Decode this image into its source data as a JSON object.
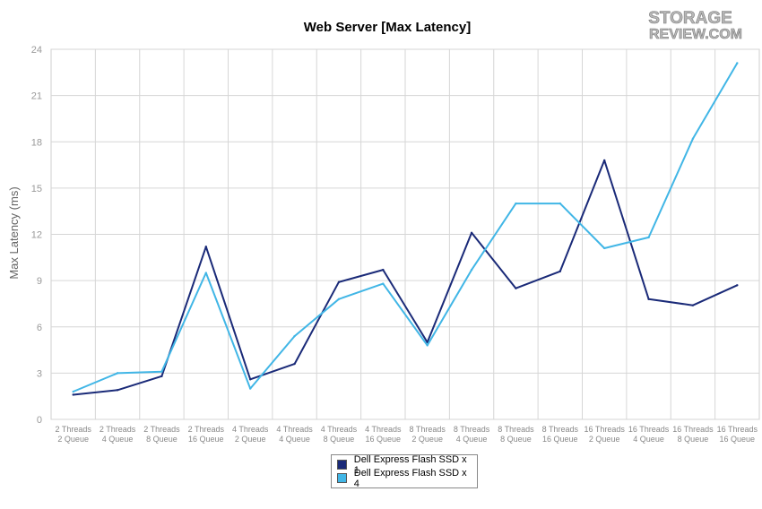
{
  "logo": {
    "line1": "STORAGE",
    "line2": "REVIEW.COM"
  },
  "chart_data": {
    "type": "line",
    "title": "Web Server [Max Latency]",
    "xlabel": "",
    "ylabel": "Max Latency (ms)",
    "ylim": [
      0,
      24
    ],
    "yticks": [
      0,
      3,
      6,
      9,
      12,
      15,
      18,
      21,
      24
    ],
    "grid": true,
    "legend_position": "bottom-center",
    "categories": [
      [
        "2 Threads",
        "2 Queue"
      ],
      [
        "2 Threads",
        "4 Queue"
      ],
      [
        "2 Threads",
        "8 Queue"
      ],
      [
        "2 Threads",
        "16 Queue"
      ],
      [
        "4 Threads",
        "2 Queue"
      ],
      [
        "4 Threads",
        "4 Queue"
      ],
      [
        "4 Threads",
        "8 Queue"
      ],
      [
        "4 Threads",
        "16 Queue"
      ],
      [
        "8 Threads",
        "2 Queue"
      ],
      [
        "8 Threads",
        "4 Queue"
      ],
      [
        "8 Threads",
        "8 Queue"
      ],
      [
        "8 Threads",
        "16 Queue"
      ],
      [
        "16 Threads",
        "2 Queue"
      ],
      [
        "16 Threads",
        "4 Queue"
      ],
      [
        "16 Threads",
        "8 Queue"
      ],
      [
        "16 Threads",
        "16 Queue"
      ]
    ],
    "series": [
      {
        "name": "Dell Express Flash SSD x 1",
        "color": "#1a2a78",
        "values": [
          1.6,
          1.9,
          2.8,
          11.2,
          2.6,
          3.6,
          8.9,
          9.7,
          5.0,
          12.1,
          8.5,
          9.6,
          16.8,
          7.8,
          7.4,
          8.7
        ]
      },
      {
        "name": "Dell Express Flash SSD x 4",
        "color": "#41b6e6",
        "values": [
          1.8,
          3.0,
          3.1,
          9.5,
          2.0,
          5.4,
          7.8,
          8.8,
          4.8,
          9.7,
          14.0,
          14.0,
          11.1,
          11.8,
          18.2,
          23.1
        ]
      }
    ]
  }
}
